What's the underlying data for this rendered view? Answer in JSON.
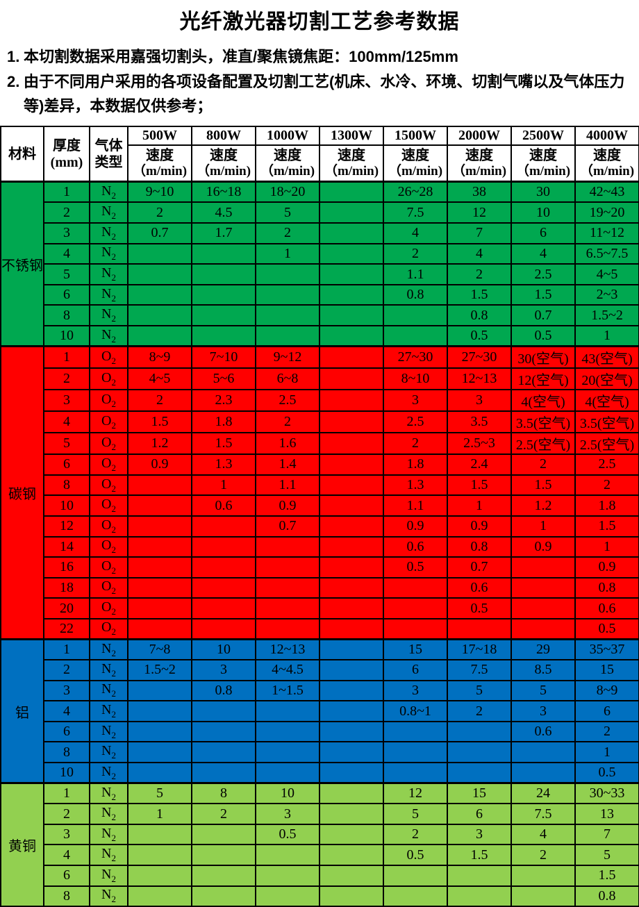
{
  "title": "光纤激光器切割工艺参考数据",
  "notes": [
    {
      "num": "1.",
      "text": "本切割数据采用嘉强切割头，准直/聚焦镜焦距：100mm/125mm"
    },
    {
      "num": "2.",
      "text": "由于不同用户采用的各项设备配置及切割工艺(机床、水冷、环境、切割气嘴以及气体压力等)差异，本数据仅供参考；"
    }
  ],
  "table": {
    "headers": {
      "material": "材料",
      "thickness": [
        "厚度",
        "(mm)"
      ],
      "gas": [
        "气体",
        "类型"
      ],
      "powers": [
        "500W",
        "800W",
        "1000W",
        "1300W",
        "1500W",
        "2000W",
        "2500W",
        "4000W"
      ],
      "speed": [
        "速度",
        "（m/min)"
      ]
    },
    "sections": [
      {
        "material": "不锈钢",
        "color": "#00A850",
        "gas": "N",
        "gas_sub": "2",
        "rows": [
          {
            "t": "1",
            "v": [
              "9~10",
              "16~18",
              "18~20",
              "",
              "26~28",
              "38",
              "30",
              "42~43"
            ]
          },
          {
            "t": "2",
            "v": [
              "2",
              "4.5",
              "5",
              "",
              "7.5",
              "12",
              "10",
              "19~20"
            ]
          },
          {
            "t": "3",
            "v": [
              "0.7",
              "1.7",
              "2",
              "",
              "4",
              "7",
              "6",
              "11~12"
            ]
          },
          {
            "t": "4",
            "v": [
              "",
              "",
              "1",
              "",
              "2",
              "4",
              "4",
              "6.5~7.5"
            ]
          },
          {
            "t": "5",
            "v": [
              "",
              "",
              "",
              "",
              "1.1",
              "2",
              "2.5",
              "4~5"
            ]
          },
          {
            "t": "6",
            "v": [
              "",
              "",
              "",
              "",
              "0.8",
              "1.5",
              "1.5",
              "2~3"
            ]
          },
          {
            "t": "8",
            "v": [
              "",
              "",
              "",
              "",
              "",
              "0.8",
              "0.7",
              "1.5~2"
            ]
          },
          {
            "t": "10",
            "v": [
              "",
              "",
              "",
              "",
              "",
              "0.5",
              "0.5",
              "1"
            ]
          }
        ]
      },
      {
        "material": "碳钢",
        "color": "#FF0000",
        "gas": "O",
        "gas_sub": "2",
        "rows": [
          {
            "t": "1",
            "v": [
              "8~9",
              "7~10",
              "9~12",
              "",
              "27~30",
              "27~30",
              "30(空气)",
              "43(空气)"
            ]
          },
          {
            "t": "2",
            "v": [
              "4~5",
              "5~6",
              "6~8",
              "",
              "8~10",
              "12~13",
              "12(空气)",
              "20(空气)"
            ]
          },
          {
            "t": "3",
            "v": [
              "2",
              "2.3",
              "2.5",
              "",
              "3",
              "3",
              "4(空气)",
              "4(空气)"
            ]
          },
          {
            "t": "4",
            "v": [
              "1.5",
              "1.8",
              "2",
              "",
              "2.5",
              "3.5",
              "3.5(空气)",
              "3.5(空气)"
            ]
          },
          {
            "t": "5",
            "v": [
              "1.2",
              "1.5",
              "1.6",
              "",
              "2",
              "2.5~3",
              "2.5(空气)",
              "2.5(空气)"
            ]
          },
          {
            "t": "6",
            "v": [
              "0.9",
              "1.3",
              "1.4",
              "",
              "1.8",
              "2.4",
              "2",
              "2.5"
            ]
          },
          {
            "t": "8",
            "v": [
              "",
              "1",
              "1.1",
              "",
              "1.3",
              "1.5",
              "1.5",
              "2"
            ]
          },
          {
            "t": "10",
            "v": [
              "",
              "0.6",
              "0.9",
              "",
              "1.1",
              "1",
              "1.2",
              "1.8"
            ]
          },
          {
            "t": "12",
            "v": [
              "",
              "",
              "0.7",
              "",
              "0.9",
              "0.9",
              "1",
              "1.5"
            ]
          },
          {
            "t": "14",
            "v": [
              "",
              "",
              "",
              "",
              "0.6",
              "0.8",
              "0.9",
              "1"
            ]
          },
          {
            "t": "16",
            "v": [
              "",
              "",
              "",
              "",
              "0.5",
              "0.7",
              "",
              "0.9"
            ]
          },
          {
            "t": "18",
            "v": [
              "",
              "",
              "",
              "",
              "",
              "0.6",
              "",
              "0.8"
            ]
          },
          {
            "t": "20",
            "v": [
              "",
              "",
              "",
              "",
              "",
              "0.5",
              "",
              "0.6"
            ]
          },
          {
            "t": "22",
            "v": [
              "",
              "",
              "",
              "",
              "",
              "",
              "",
              "0.5"
            ]
          }
        ]
      },
      {
        "material": "铝",
        "color": "#0070C0",
        "gas": "N",
        "gas_sub": "2",
        "rows": [
          {
            "t": "1",
            "v": [
              "7~8",
              "10",
              "12~13",
              "",
              "15",
              "17~18",
              "29",
              "35~37"
            ]
          },
          {
            "t": "2",
            "v": [
              "1.5~2",
              "3",
              "4~4.5",
              "",
              "6",
              "7.5",
              "8.5",
              "15"
            ]
          },
          {
            "t": "3",
            "v": [
              "",
              "0.8",
              "1~1.5",
              "",
              "3",
              "5",
              "5",
              "8~9"
            ]
          },
          {
            "t": "4",
            "v": [
              "",
              "",
              "",
              "",
              "0.8~1",
              "2",
              "3",
              "6"
            ]
          },
          {
            "t": "6",
            "v": [
              "",
              "",
              "",
              "",
              "",
              "",
              "0.6",
              "2"
            ]
          },
          {
            "t": "8",
            "v": [
              "",
              "",
              "",
              "",
              "",
              "",
              "",
              "1"
            ]
          },
          {
            "t": "10",
            "v": [
              "",
              "",
              "",
              "",
              "",
              "",
              "",
              "0.5"
            ]
          }
        ]
      },
      {
        "material": "黄铜",
        "color": "#92D050",
        "gas": "N",
        "gas_sub": "2",
        "rows": [
          {
            "t": "1",
            "v": [
              "5",
              "8",
              "10",
              "",
              "12",
              "15",
              "24",
              "30~33"
            ]
          },
          {
            "t": "2",
            "v": [
              "1",
              "2",
              "3",
              "",
              "5",
              "6",
              "7.5",
              "13"
            ]
          },
          {
            "t": "3",
            "v": [
              "",
              "",
              "0.5",
              "",
              "2",
              "3",
              "4",
              "7"
            ]
          },
          {
            "t": "4",
            "v": [
              "",
              "",
              "",
              "",
              "0.5",
              "1.5",
              "2",
              "5"
            ]
          },
          {
            "t": "6",
            "v": [
              "",
              "",
              "",
              "",
              "",
              "",
              "",
              "1.5"
            ]
          },
          {
            "t": "8",
            "v": [
              "",
              "",
              "",
              "",
              "",
              "",
              "",
              "0.8"
            ]
          }
        ]
      }
    ]
  }
}
